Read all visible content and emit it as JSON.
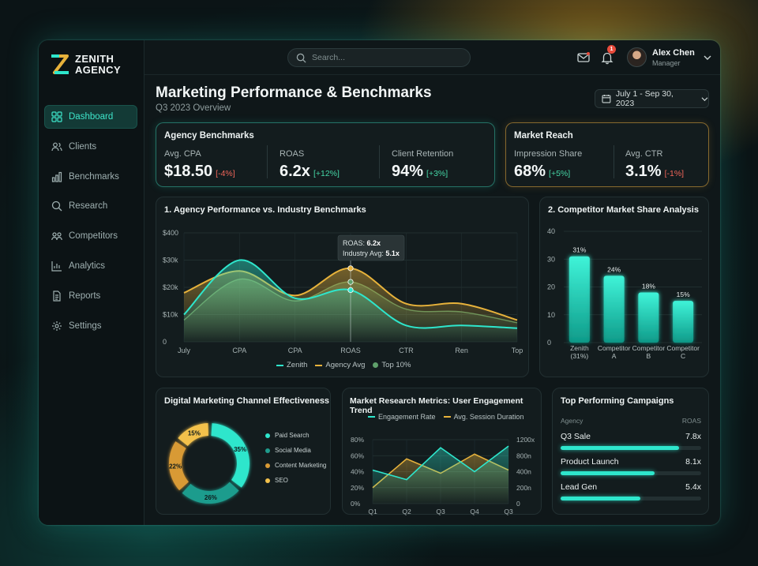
{
  "brand": {
    "line1": "ZENITH",
    "line2": "AGENCY"
  },
  "sidebar": {
    "items": [
      {
        "label": "Dashboard",
        "icon": "grid-icon",
        "active": true
      },
      {
        "label": "Clients",
        "icon": "users-icon"
      },
      {
        "label": "Benchmarks",
        "icon": "bar-chart-icon"
      },
      {
        "label": "Research",
        "icon": "search-icon"
      },
      {
        "label": "Competitors",
        "icon": "people-icon"
      },
      {
        "label": "Analytics",
        "icon": "analytics-icon"
      },
      {
        "label": "Reports",
        "icon": "document-icon"
      },
      {
        "label": "Settings",
        "icon": "gear-icon"
      }
    ]
  },
  "topbar": {
    "search_placeholder": "Search...",
    "notification_count": "1",
    "user_name": "Alex Chen",
    "user_role": "Manager"
  },
  "header": {
    "title": "Marketing Performance & Benchmarks",
    "subtitle": "Q3 2023 Overview",
    "date_range": "July 1 - Sep 30, 2023"
  },
  "agency_benchmarks": {
    "title": "Agency Benchmarks",
    "kpis": [
      {
        "label": "Avg. CPA",
        "value": "$18.50",
        "delta": "[-4%]",
        "trend": "neg"
      },
      {
        "label": "ROAS",
        "value": "6.2x",
        "delta": "[+12%]",
        "trend": "pos"
      },
      {
        "label": "Client Retention",
        "value": "94%",
        "delta": "[+3%]",
        "trend": "pos"
      }
    ]
  },
  "market_reach": {
    "title": "Market Reach",
    "kpis": [
      {
        "label": "Impression Share",
        "value": "68%",
        "delta": "[+5%]",
        "trend": "pos"
      },
      {
        "label": "Avg. CTR",
        "value": "3.1%",
        "delta": "[-1%]",
        "trend": "neg"
      }
    ]
  },
  "chart_data": [
    {
      "type": "area",
      "title": "1. Agency Performance vs. Industry Benchmarks",
      "categories": [
        "July",
        "CPA",
        "CPA",
        "ROAS",
        "CTR",
        "Ren",
        "Top"
      ],
      "y_ticks": [
        "0",
        "$10k",
        "$20k",
        "$30k",
        "$400"
      ],
      "ylim": [
        0,
        40
      ],
      "series": [
        {
          "name": "Zenith",
          "values": [
            10,
            30,
            16,
            19,
            6,
            6,
            5
          ],
          "color": "#2ee6cc"
        },
        {
          "name": "Agency Avg",
          "values": [
            18,
            26,
            17,
            27,
            14,
            14,
            8
          ],
          "color": "#e7b23b"
        },
        {
          "name": "Top 10%",
          "values": [
            8,
            23,
            15,
            22,
            12,
            11,
            7
          ],
          "color": "#5fa06b"
        }
      ],
      "tooltip": {
        "line1_label": "ROAS: ",
        "line1_value": "6.2x",
        "line2_label": "Industry Avg: ",
        "line2_value": "5.1x"
      },
      "legend": "bottom"
    },
    {
      "type": "bar",
      "title": "2. Competitor Market Share Analysis",
      "categories": [
        [
          "Zenith",
          "(31%)"
        ],
        [
          "Competitor",
          "A"
        ],
        [
          "Competitor",
          "B"
        ],
        [
          "Competitor",
          "C"
        ]
      ],
      "values": [
        31,
        24,
        18,
        15
      ],
      "value_labels": [
        "31%",
        "24%",
        "18%",
        "15%"
      ],
      "y_ticks": [
        "0",
        "10",
        "20",
        "30",
        "40"
      ],
      "ylim": [
        0,
        40
      ]
    },
    {
      "type": "pie",
      "title": "Digital Marketing Channel Effectiveness",
      "slices": [
        {
          "name": "Paid Search",
          "value": 35,
          "label": "35%",
          "color": "#2ee6cc"
        },
        {
          "name": "Social Media",
          "value": 26,
          "label": "26%",
          "color": "#1f9c8d"
        },
        {
          "name": "Content Marketing",
          "value": 22,
          "label": "22%",
          "color": "#d89a35"
        },
        {
          "name": "SEO",
          "value": 15,
          "label": "15%",
          "color": "#f3c14c"
        }
      ],
      "legend": "right"
    },
    {
      "type": "line",
      "title": "Market Research Metrics: User Engagement Trend",
      "categories": [
        "Q1",
        "Q2",
        "Q3",
        "Q4",
        "Q3"
      ],
      "y_left_ticks": [
        "0%",
        "20%",
        "40%",
        "60%",
        "80%"
      ],
      "y_right_ticks": [
        "0",
        "200n",
        "400n",
        "800n",
        "1200x"
      ],
      "ylim": [
        0,
        80
      ],
      "series": [
        {
          "name": "Engagement Rate",
          "values": [
            42,
            30,
            70,
            40,
            72
          ],
          "color": "#2ee6cc"
        },
        {
          "name": "Avg. Session Duration",
          "values": [
            20,
            56,
            38,
            62,
            42
          ],
          "color": "#e7b23b"
        }
      ],
      "legend": "top"
    }
  ],
  "campaigns": {
    "title": "Top Performing Campaigns",
    "col_agency": "Agency",
    "col_roas": "ROAS",
    "items": [
      {
        "name": "Q3 Sale",
        "roas": "7.8x",
        "fill": 0.84
      },
      {
        "name": "Product Launch",
        "roas": "8.1x",
        "fill": 0.67
      },
      {
        "name": "Lead Gen",
        "roas": "5.4x",
        "fill": 0.57
      }
    ]
  }
}
